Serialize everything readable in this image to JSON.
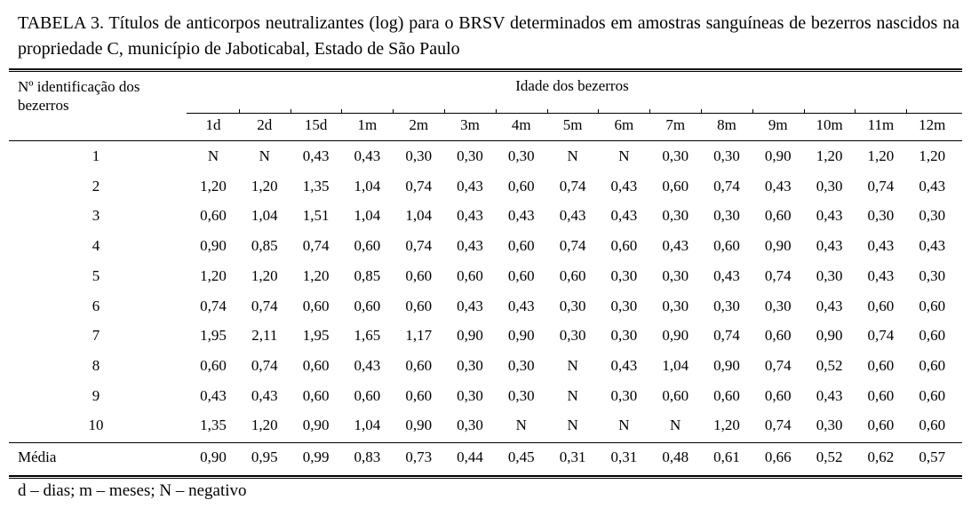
{
  "title": "TABELA 3. Títulos de anticorpos neutralizantes (log) para o BRSV determinados em amostras sanguíneas de bezerros nascidos na propriedade C, município de Jaboticabal, Estado de São Paulo",
  "table": {
    "row_header": "Nº identificação dos bezerros",
    "group_header": "Idade dos bezerros",
    "columns": [
      "1d",
      "2d",
      "15d",
      "1m",
      "2m",
      "3m",
      "4m",
      "5m",
      "6m",
      "7m",
      "8m",
      "9m",
      "10m",
      "11m",
      "12m"
    ],
    "rows": [
      {
        "id": "1",
        "values": [
          "N",
          "N",
          "0,43",
          "0,43",
          "0,30",
          "0,30",
          "0,30",
          "N",
          "N",
          "0,30",
          "0,30",
          "0,90",
          "1,20",
          "1,20",
          "1,20"
        ]
      },
      {
        "id": "2",
        "values": [
          "1,20",
          "1,20",
          "1,35",
          "1,04",
          "0,74",
          "0,43",
          "0,60",
          "0,74",
          "0,43",
          "0,60",
          "0,74",
          "0,43",
          "0,30",
          "0,74",
          "0,43"
        ]
      },
      {
        "id": "3",
        "values": [
          "0,60",
          "1,04",
          "1,51",
          "1,04",
          "1,04",
          "0,43",
          "0,43",
          "0,43",
          "0,43",
          "0,30",
          "0,30",
          "0,60",
          "0,43",
          "0,30",
          "0,30"
        ]
      },
      {
        "id": "4",
        "values": [
          "0,90",
          "0,85",
          "0,74",
          "0,60",
          "0,74",
          "0,43",
          "0,60",
          "0,74",
          "0,60",
          "0,43",
          "0,60",
          "0,90",
          "0,43",
          "0,43",
          "0,43"
        ]
      },
      {
        "id": "5",
        "values": [
          "1,20",
          "1,20",
          "1,20",
          "0,85",
          "0,60",
          "0,60",
          "0,60",
          "0,60",
          "0,30",
          "0,30",
          "0,43",
          "0,74",
          "0,30",
          "0,43",
          "0,30"
        ]
      },
      {
        "id": "6",
        "values": [
          "0,74",
          "0,74",
          "0,60",
          "0,60",
          "0,60",
          "0,43",
          "0,43",
          "0,30",
          "0,30",
          "0,30",
          "0,30",
          "0,30",
          "0,43",
          "0,60",
          "0,60"
        ]
      },
      {
        "id": "7",
        "values": [
          "1,95",
          "2,11",
          "1,95",
          "1,65",
          "1,17",
          "0,90",
          "0,90",
          "0,30",
          "0,30",
          "0,90",
          "0,74",
          "0,60",
          "0,90",
          "0,74",
          "0,60"
        ]
      },
      {
        "id": "8",
        "values": [
          "0,60",
          "0,74",
          "0,60",
          "0,43",
          "0,60",
          "0,30",
          "0,30",
          "N",
          "0,43",
          "1,04",
          "0,90",
          "0,74",
          "0,52",
          "0,60",
          "0,60"
        ]
      },
      {
        "id": "9",
        "values": [
          "0,43",
          "0,43",
          "0,60",
          "0,60",
          "0,60",
          "0,30",
          "0,30",
          "N",
          "0,30",
          "0,60",
          "0,60",
          "0,60",
          "0,43",
          "0,60",
          "0,60"
        ]
      },
      {
        "id": "10",
        "values": [
          "1,35",
          "1,20",
          "0,90",
          "1,04",
          "0,90",
          "0,30",
          "N",
          "N",
          "N",
          "N",
          "1,20",
          "0,74",
          "0,30",
          "0,60",
          "0,60"
        ]
      }
    ],
    "mean": {
      "label": "Média",
      "values": [
        "0,90",
        "0,95",
        "0,99",
        "0,83",
        "0,73",
        "0,44",
        "0,45",
        "0,31",
        "0,31",
        "0,48",
        "0,61",
        "0,66",
        "0,52",
        "0,62",
        "0,57"
      ]
    }
  },
  "footnote": "d – dias; m – meses; N – negativo"
}
